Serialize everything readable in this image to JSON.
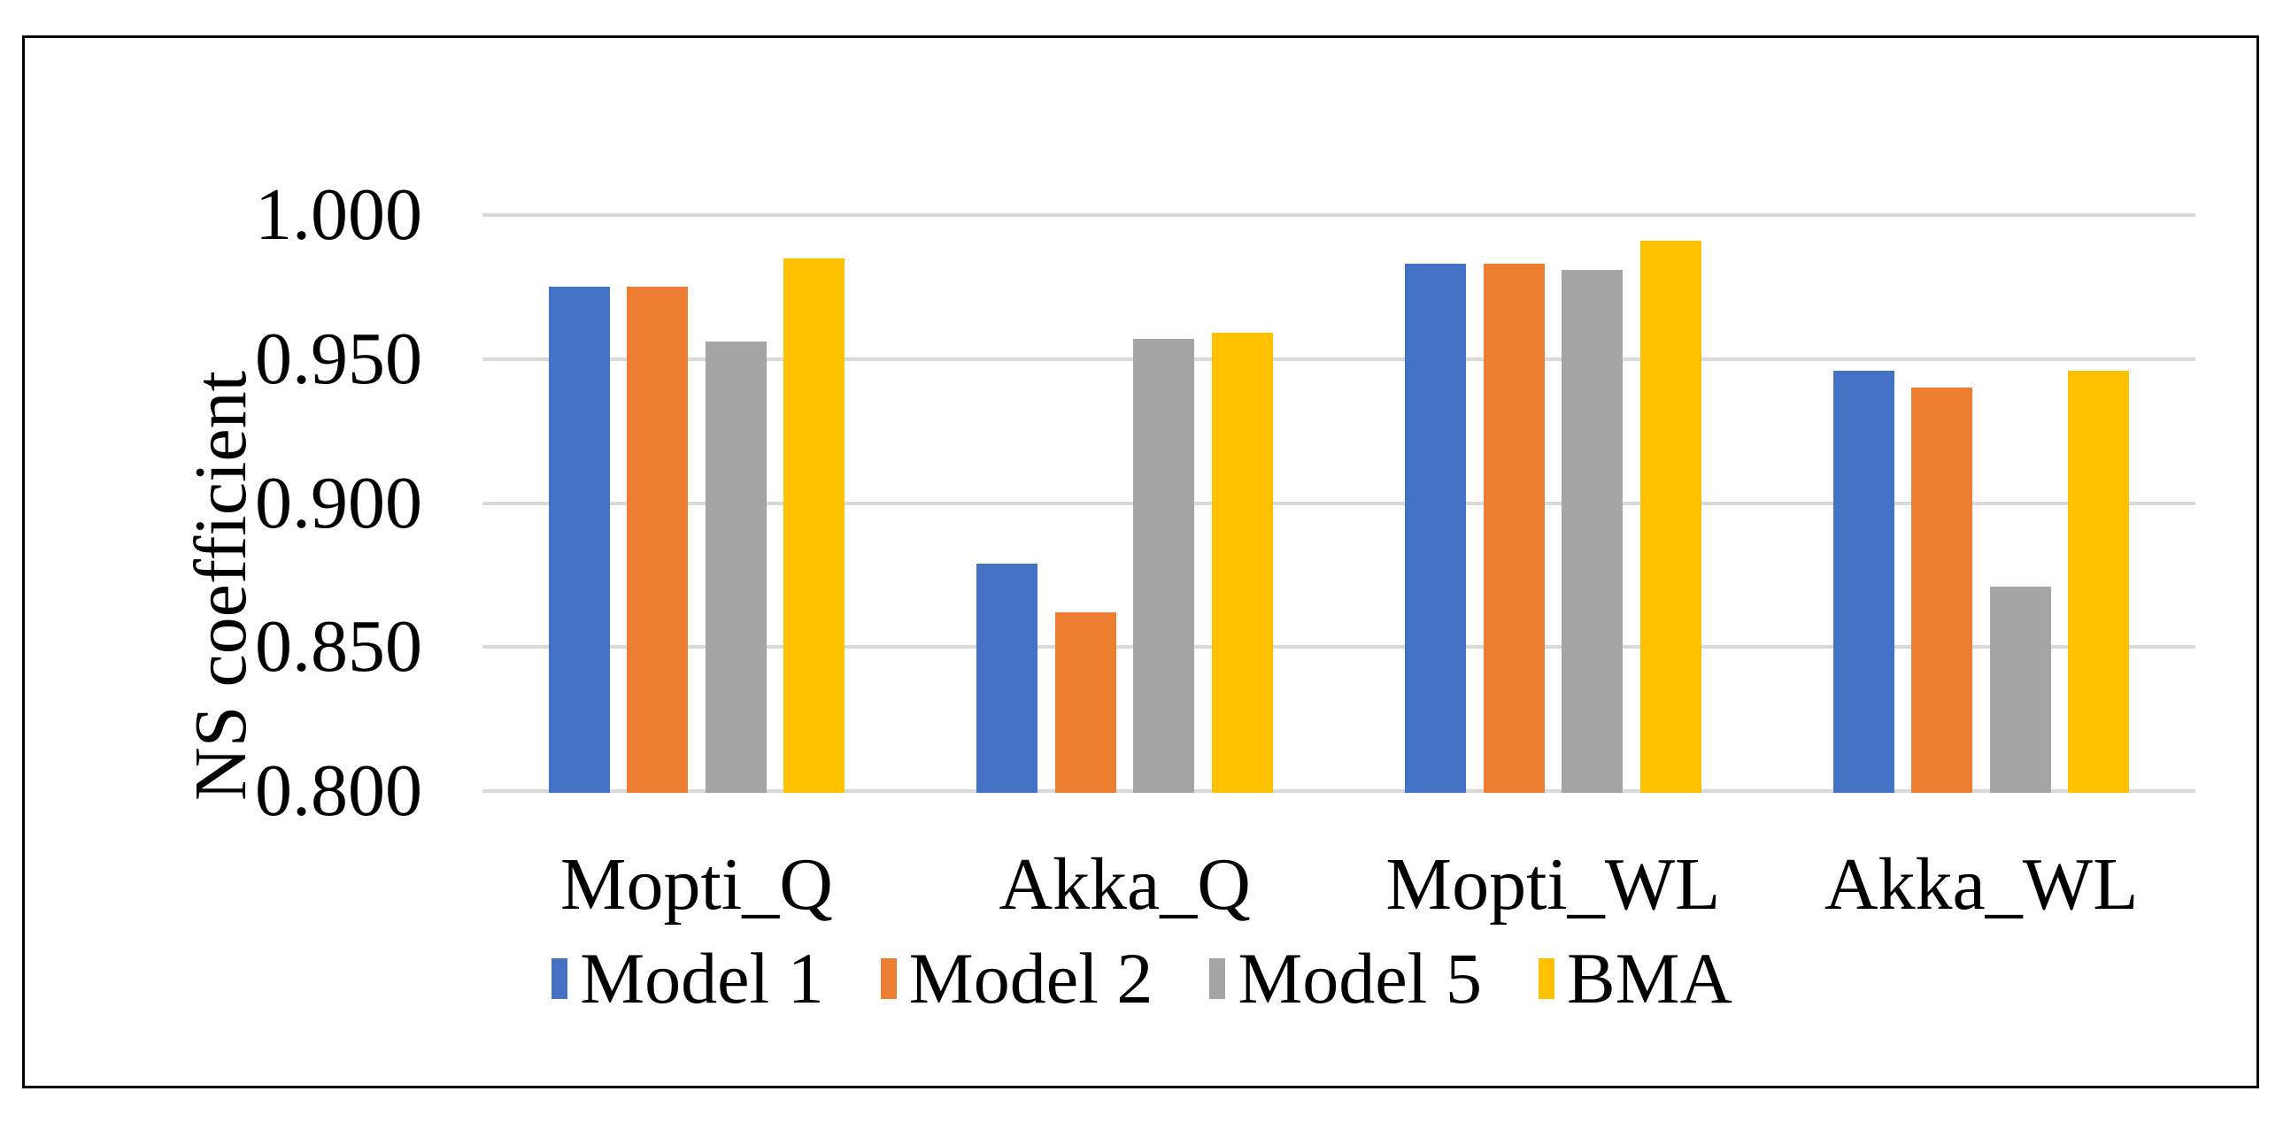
{
  "chart_data": {
    "type": "bar",
    "title": "",
    "categories": [
      "Mopti_Q",
      "Akka_Q",
      "Mopti_WL",
      "Akka_WL"
    ],
    "series": [
      {
        "name": "Model 1",
        "color": "#4472C4",
        "values": [
          0.975,
          0.879,
          0.983,
          0.946
        ]
      },
      {
        "name": "Model 2",
        "color": "#ED7D31",
        "values": [
          0.975,
          0.862,
          0.983,
          0.94
        ]
      },
      {
        "name": "Model 5",
        "color": "#A5A5A5",
        "values": [
          0.956,
          0.957,
          0.981,
          0.871
        ]
      },
      {
        "name": "BMA",
        "color": "#FFC000",
        "values": [
          0.985,
          0.959,
          0.991,
          0.946
        ]
      }
    ],
    "xlabel": "",
    "ylabel": "NS coefficient",
    "ylim": [
      0.8,
      1.0
    ],
    "ytick_step": 0.05,
    "yticks": [
      "1.000",
      "0.950",
      "0.900",
      "0.850",
      "0.800"
    ],
    "grid": true,
    "gridline_color": "#D9D9D9",
    "legend_position": "bottom",
    "border_color": "#000000",
    "background_color": "#FFFFFF"
  }
}
